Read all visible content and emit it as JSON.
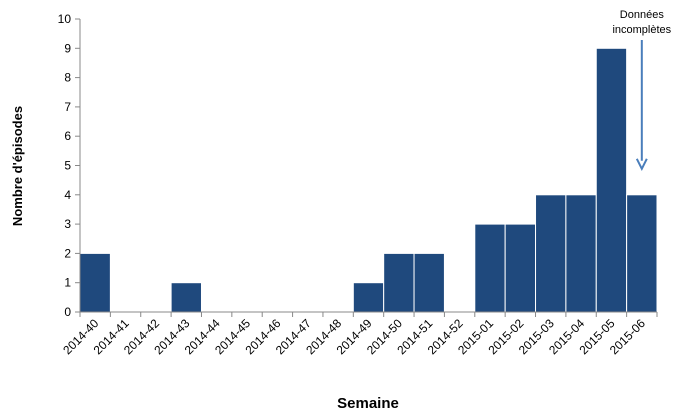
{
  "chart_data": {
    "type": "bar",
    "xlabel": "Semaine",
    "ylabel": "Nombre d'épisodes",
    "ylim": [
      0,
      10
    ],
    "yticks": [
      0,
      1,
      2,
      3,
      4,
      5,
      6,
      7,
      8,
      9,
      10
    ],
    "categories": [
      "2014-40",
      "2014-41",
      "2014-42",
      "2014-43",
      "2014-44",
      "2014-45",
      "2014-46",
      "2014-47",
      "2014-48",
      "2014-49",
      "2014-50",
      "2014-51",
      "2014-52",
      "2015-01",
      "2015-02",
      "2015-03",
      "2015-04",
      "2015-05",
      "2015-06"
    ],
    "values": [
      2,
      0,
      0,
      1,
      0,
      0,
      0,
      0,
      0,
      1,
      2,
      2,
      0,
      3,
      3,
      4,
      4,
      9,
      4
    ],
    "bar_color": "#1F497D",
    "annotation": {
      "lines": [
        "Données",
        "incomplètes"
      ],
      "target_category": "2015-06",
      "arrow_color": "#4A7EBB"
    },
    "grid": false,
    "legend": "none"
  }
}
